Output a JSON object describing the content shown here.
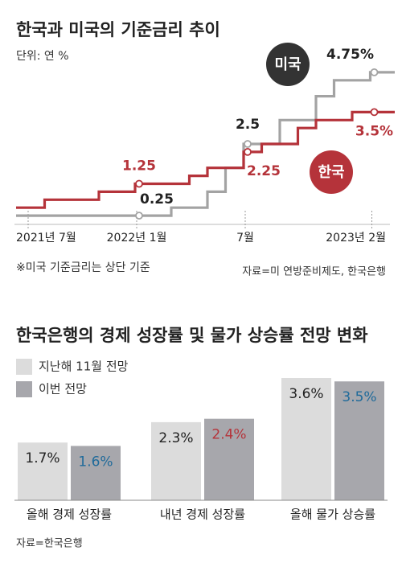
{
  "chart_data": [
    {
      "type": "step-line",
      "title": "한국과 미국의 기준금리 추이",
      "subtitle": "단위: 연 %",
      "categories": [
        "2021년 7월",
        null,
        null,
        null,
        null,
        null,
        "2022년 1월",
        null,
        null,
        null,
        null,
        null,
        "7월",
        null,
        null,
        null,
        null,
        null,
        null,
        "2023년 2월",
        null
      ],
      "series": [
        {
          "name": "미국",
          "color": "#a3a3a3",
          "label_color": "#222",
          "bubble_color": "#333333",
          "values": [
            0.25,
            0.25,
            0.25,
            0.25,
            0.25,
            0.25,
            0.25,
            0.25,
            0.5,
            0.5,
            1.0,
            1.75,
            2.5,
            2.5,
            3.25,
            3.25,
            4.0,
            4.5,
            4.5,
            4.75,
            4.75
          ],
          "value_labels": [
            null,
            null,
            null,
            null,
            null,
            null,
            "0.25",
            null,
            null,
            null,
            null,
            null,
            "2.5",
            null,
            null,
            null,
            null,
            null,
            null,
            "4.75%",
            null
          ]
        },
        {
          "name": "한국",
          "color": "#b5333a",
          "label_color": "#b5333a",
          "bubble_color": "#b5333a",
          "values": [
            0.5,
            0.75,
            0.75,
            0.75,
            1.0,
            1.0,
            1.25,
            1.25,
            1.25,
            1.5,
            1.75,
            1.75,
            2.25,
            2.5,
            2.5,
            3.0,
            3.25,
            3.25,
            3.5,
            3.5,
            3.5
          ],
          "value_labels": [
            null,
            null,
            null,
            null,
            null,
            null,
            "1.25",
            null,
            null,
            null,
            null,
            null,
            "2.25",
            null,
            null,
            null,
            null,
            null,
            null,
            "3.5%",
            null
          ]
        }
      ],
      "note": "※미국 기준금리는 상단 기준",
      "source": "자료=미 연방준비제도, 한국은행"
    },
    {
      "type": "bar",
      "title": "한국은행의 경제 성장률 및 물가 상승률 전망 변화",
      "categories": [
        "올해 경제 성장률",
        "내년 경제 성장률",
        "올해 물가 상승률"
      ],
      "series": [
        {
          "name": "지난해 11월 전망",
          "color": "#dcdcdc",
          "values": [
            1.7,
            2.3,
            3.6
          ],
          "value_labels": [
            "1.7%",
            "2.3%",
            "3.6%"
          ],
          "label_colors": [
            "#222",
            "#222",
            "#222"
          ]
        },
        {
          "name": "이번 전망",
          "color": "#a7a7ac",
          "values": [
            1.6,
            2.4,
            3.5
          ],
          "value_labels": [
            "1.6%",
            "2.4%",
            "3.5%"
          ],
          "label_colors": [
            "#1f6a9a",
            "#b5333a",
            "#1f6a9a"
          ]
        }
      ],
      "source": "자료=한국은행"
    }
  ]
}
